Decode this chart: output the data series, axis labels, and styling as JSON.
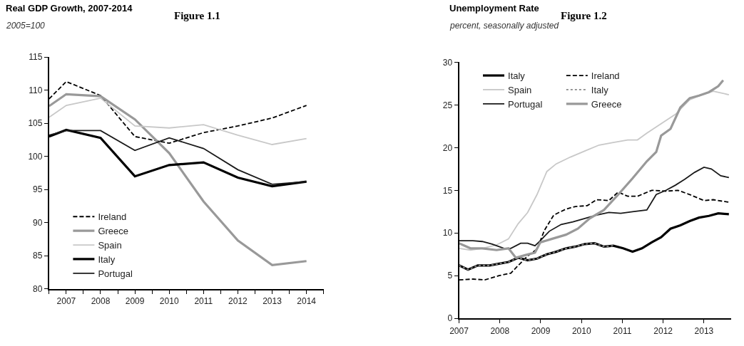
{
  "chart_data": [
    {
      "type": "line",
      "title": "Real GDP Growth, 2007-2014",
      "subtitle": "2005=100",
      "annotations": [
        "Figure 1.1"
      ],
      "x": [
        2006.5,
        2007,
        2008,
        2009,
        2010,
        2011,
        2012,
        2013,
        2014
      ],
      "series": [
        {
          "name": "Ireland",
          "color": "#000000",
          "line_style": "dashed",
          "values": [
            108.7,
            111.3,
            109.2,
            103.0,
            102.0,
            103.6,
            104.6,
            105.8,
            107.7
          ]
        },
        {
          "name": "Greece",
          "color": "#999999",
          "values": [
            107.6,
            109.4,
            109.1,
            105.6,
            100.5,
            93.2,
            87.3,
            83.6,
            84.2
          ]
        },
        {
          "name": "Spain",
          "color": "#c8c8c8",
          "values": [
            105.9,
            107.7,
            108.8,
            104.6,
            104.3,
            104.8,
            103.2,
            101.8,
            102.7
          ]
        },
        {
          "name": "Italy",
          "color": "#000000",
          "values": [
            103.0,
            104.0,
            102.8,
            97.0,
            98.7,
            99.1,
            96.8,
            95.5,
            96.2
          ]
        },
        {
          "name": "Portugal",
          "color": "#1a1a1a",
          "values": [
            103.2,
            103.9,
            103.9,
            100.9,
            102.8,
            101.2,
            98.0,
            95.8,
            96.2
          ]
        }
      ],
      "xlim": [
        2006.5,
        2014.5
      ],
      "xticks": [
        {
          "value": 2006.5,
          "label": null
        },
        2007,
        {
          "value": 2007.5,
          "label": null
        },
        2008,
        {
          "value": 2008.5,
          "label": null
        },
        2009,
        {
          "value": 2009.5,
          "label": null
        },
        2010,
        {
          "value": 2010.5,
          "label": null
        },
        2011,
        {
          "value": 2011.5,
          "label": null
        },
        2012,
        {
          "value": 2012.5,
          "label": null
        },
        2013,
        {
          "value": 2013.5,
          "label": null
        },
        2014,
        {
          "value": 2014.5,
          "label": null
        }
      ],
      "ylim": [
        80,
        115
      ],
      "yticks": [
        80,
        85,
        90,
        95,
        100,
        105,
        110,
        115
      ],
      "legend": "bottom left",
      "line_style": "solid"
    },
    {
      "type": "line",
      "title": "Unemployment Rate",
      "subtitle": "percent, seasonally adjusted",
      "annotations": [
        "Figure 1.2"
      ],
      "series": [
        {
          "name": "Italy",
          "color": "#000000",
          "x": [
            2007,
            2007.22,
            2007.46,
            2007.75,
            2007.98,
            2008.21,
            2008.45,
            2008.68,
            2008.91,
            2009.15,
            2009.38,
            2009.62,
            2009.85,
            2010.08,
            2010.32,
            2010.55,
            2010.78,
            2011.02,
            2011.25,
            2011.48,
            2011.72,
            2011.95,
            2012.18,
            2012.42,
            2012.65,
            2012.88,
            2013.12,
            2013.35,
            2013.61
          ],
          "values": [
            6.2,
            5.7,
            6.2,
            6.2,
            6.4,
            6.6,
            7.1,
            6.8,
            7.0,
            7.5,
            7.8,
            8.2,
            8.4,
            8.7,
            8.8,
            8.4,
            8.5,
            8.2,
            7.8,
            8.2,
            8.9,
            9.5,
            10.5,
            10.9,
            11.4,
            11.8,
            12.0,
            12.3,
            12.2
          ]
        },
        {
          "name": "Ireland",
          "color": "#000000",
          "line_style": "dashed",
          "x": [
            2007,
            2007.34,
            2007.63,
            2007.98,
            2008.27,
            2008.45,
            2008.68,
            2008.91,
            2009.09,
            2009.32,
            2009.62,
            2009.85,
            2010.14,
            2010.37,
            2010.67,
            2010.9,
            2011.13,
            2011.37,
            2011.72,
            2012.07,
            2012.36,
            2012.65,
            2013.0,
            2013.23,
            2013.61
          ],
          "values": [
            4.5,
            4.6,
            4.5,
            5.0,
            5.3,
            6.2,
            7.3,
            8.1,
            10.3,
            12.1,
            12.8,
            13.1,
            13.2,
            13.9,
            13.8,
            14.8,
            14.3,
            14.3,
            15.0,
            14.9,
            15.0,
            14.5,
            13.8,
            13.9,
            13.6
          ]
        },
        {
          "name": "Spain",
          "color": "#c8c8c8",
          "x": [
            2007,
            2007.28,
            2007.57,
            2007.92,
            2008.21,
            2008.45,
            2008.68,
            2008.91,
            2009.15,
            2009.38,
            2009.73,
            2010.08,
            2010.43,
            2010.78,
            2011.13,
            2011.37,
            2011.6,
            2011.95,
            2012.3,
            2012.65,
            2013.0,
            2013.23,
            2013.61
          ],
          "values": [
            8.2,
            8.0,
            8.2,
            8.6,
            9.3,
            11.1,
            12.4,
            14.5,
            17.2,
            18.1,
            18.9,
            19.6,
            20.3,
            20.6,
            20.9,
            20.9,
            21.7,
            22.8,
            23.9,
            25.6,
            26.3,
            26.6,
            26.2
          ]
        },
        {
          "name": "Italy",
          "color": "#888888",
          "line_style": "dotted",
          "x": [
            2007,
            2007.22,
            2007.46,
            2007.75,
            2007.98,
            2008.21,
            2008.45,
            2008.68,
            2008.91,
            2009.15,
            2009.38,
            2009.62,
            2009.85,
            2010.08,
            2010.32,
            2010.55,
            2010.78
          ],
          "values": [
            6.2,
            5.7,
            6.2,
            6.2,
            6.4,
            6.6,
            7.1,
            6.8,
            7.0,
            7.5,
            7.8,
            8.2,
            8.4,
            8.7,
            8.8,
            8.4,
            8.5
          ]
        },
        {
          "name": "Portugal",
          "color": "#1a1a1a",
          "x": [
            2007,
            2007.34,
            2007.57,
            2007.81,
            2008.1,
            2008.27,
            2008.51,
            2008.68,
            2008.86,
            2008.99,
            2009.21,
            2009.5,
            2009.79,
            2010.08,
            2010.37,
            2010.67,
            2010.96,
            2011.25,
            2011.6,
            2011.83,
            2012.07,
            2012.3,
            2012.53,
            2012.77,
            2013.0,
            2013.18,
            2013.41,
            2013.61
          ],
          "values": [
            9.1,
            9.1,
            9.0,
            8.7,
            8.2,
            8.2,
            8.8,
            8.8,
            8.5,
            9.1,
            10.2,
            11.0,
            11.3,
            11.7,
            12.1,
            12.4,
            12.3,
            12.5,
            12.7,
            14.5,
            15.0,
            15.6,
            16.3,
            17.1,
            17.7,
            17.5,
            16.7,
            16.5
          ]
        },
        {
          "name": "Greece",
          "color": "#999999",
          "x": [
            2007,
            2007.28,
            2007.57,
            2007.92,
            2008.21,
            2008.39,
            2008.62,
            2008.86,
            2008.99,
            2009.27,
            2009.62,
            2009.91,
            2010.2,
            2010.55,
            2010.9,
            2011.25,
            2011.6,
            2011.83,
            2011.95,
            2012.18,
            2012.42,
            2012.65,
            2012.88,
            2013.12,
            2013.35,
            2013.47
          ],
          "values": [
            8.8,
            8.2,
            8.2,
            8.0,
            8.2,
            7.1,
            7.4,
            7.7,
            8.9,
            9.3,
            9.8,
            10.5,
            11.7,
            12.7,
            14.5,
            16.4,
            18.4,
            19.5,
            21.4,
            22.2,
            24.7,
            25.8,
            26.1,
            26.5,
            27.2,
            27.9
          ]
        }
      ],
      "xlim": [
        2007,
        2013.67
      ],
      "xticks": [
        2007,
        2008,
        2009,
        2010,
        2011,
        2012,
        2013
      ],
      "ylim": [
        0,
        30
      ],
      "yticks": [
        0,
        5,
        10,
        15,
        20,
        25,
        30
      ],
      "legend": "top left",
      "line_style": "solid"
    }
  ]
}
